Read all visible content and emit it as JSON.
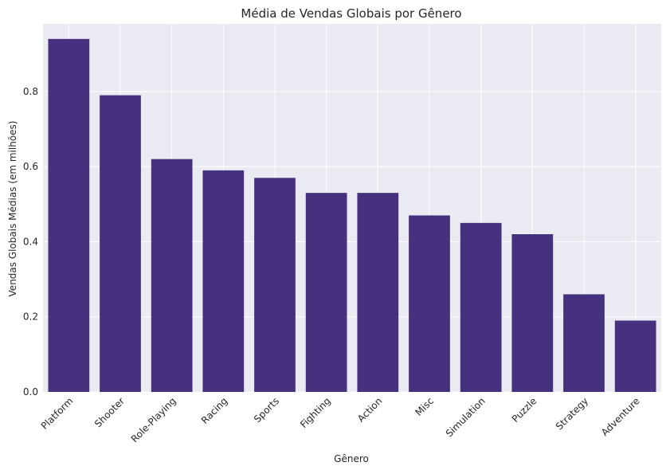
{
  "chart_data": {
    "type": "bar",
    "title": "Média de Vendas Globais por Gênero",
    "xlabel": "Gênero",
    "ylabel": "Vendas Globais Médias (em milhões)",
    "categories": [
      "Platform",
      "Shooter",
      "Role-Playing",
      "Racing",
      "Sports",
      "Fighting",
      "Action",
      "Misc",
      "Simulation",
      "Puzzle",
      "Strategy",
      "Adventure"
    ],
    "values": [
      0.94,
      0.79,
      0.62,
      0.59,
      0.57,
      0.53,
      0.53,
      0.47,
      0.45,
      0.42,
      0.26,
      0.19
    ],
    "ylim": [
      0,
      0.98
    ],
    "yticks": [
      0.0,
      0.2,
      0.4,
      0.6,
      0.8
    ],
    "ytick_labels": [
      "0.0",
      "0.2",
      "0.4",
      "0.6",
      "0.8"
    ],
    "grid": true,
    "colors": {
      "bar": "#46317e",
      "plot_background": "#eaeaf2",
      "grid": "#ffffff",
      "text": "#262626"
    }
  }
}
